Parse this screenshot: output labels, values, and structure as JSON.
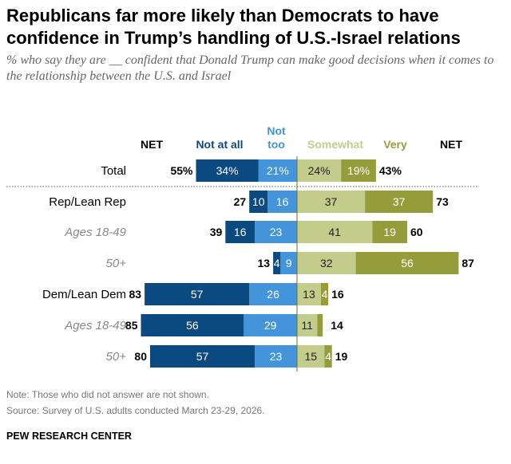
{
  "title": "Republicans far more likely than Democrats to have confidence in Trump’s handling of U.S.-Israel relations",
  "subtitle": "% who say they are __ confident that Donald Trump can make good decisions when it comes to the relationship between the U.S. and Israel",
  "notes": [
    "Note: Those who did not answer are not shown.",
    "Source: Survey of U.S. adults conducted March 23-29, 2026."
  ],
  "brand": "PEW RESEARCH CENTER",
  "chart_data": {
    "type": "bar",
    "orientation": "horizontal diverging stacked",
    "column_headers": {
      "net_left": "NET",
      "not_at_all": "Not at all",
      "not_too_1": "Not",
      "not_too_2": "too",
      "somewhat": "Somewhat",
      "very": "Very",
      "net_right": "NET"
    },
    "categories": [
      "Total",
      "Rep/Lean Rep",
      "Ages 18-49",
      "50+",
      "Dem/Lean Dem",
      "Ages 18-49",
      "50+"
    ],
    "category_style": [
      "main",
      "main",
      "sub",
      "sub",
      "main",
      "sub",
      "sub"
    ],
    "series": [
      {
        "name": "Not at all",
        "side": "negative",
        "color": "#0b4a80",
        "values": [
          34,
          10,
          16,
          4,
          57,
          56,
          57
        ],
        "labels": [
          "34%",
          "10",
          "16",
          "4",
          "57",
          "56",
          "57"
        ]
      },
      {
        "name": "Not too",
        "side": "negative",
        "color": "#4394da",
        "values": [
          21,
          16,
          23,
          9,
          26,
          29,
          23
        ],
        "labels": [
          "21%",
          "16",
          "23",
          "9",
          "26",
          "29",
          "23"
        ]
      },
      {
        "name": "Somewhat",
        "side": "positive",
        "color": "#c4cc8c",
        "values": [
          24,
          37,
          41,
          32,
          13,
          11,
          15
        ],
        "labels": [
          "24%",
          "37",
          "41",
          "32",
          "13",
          "11",
          "15"
        ]
      },
      {
        "name": "Very",
        "side": "positive",
        "color": "#959d3b",
        "values": [
          19,
          37,
          19,
          56,
          4,
          3,
          4
        ],
        "labels": [
          "19%",
          "37",
          "19",
          "56",
          "4",
          "",
          "4"
        ]
      }
    ],
    "net_negative": [
      "55%",
      "27",
      "39",
      "13",
      "83",
      "85",
      "80"
    ],
    "net_positive": [
      "43%",
      "73",
      "60",
      "87",
      "16",
      "14",
      "19"
    ]
  }
}
